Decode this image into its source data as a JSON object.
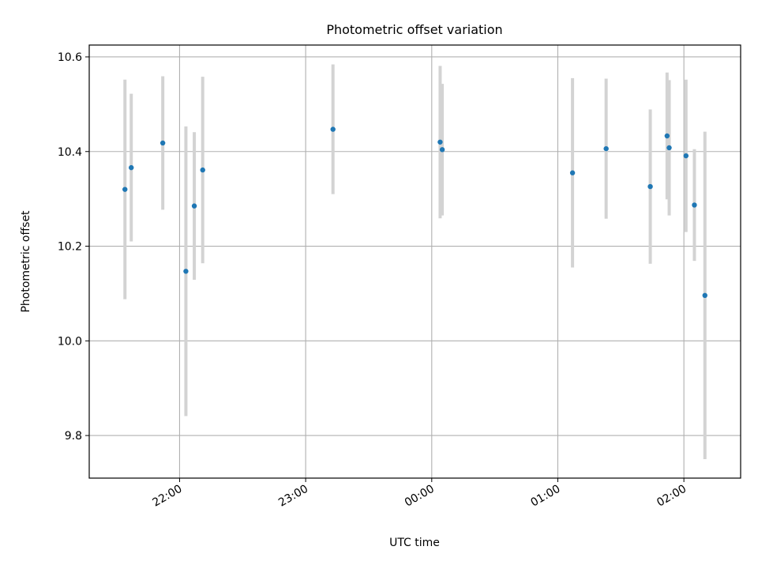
{
  "chart_data": {
    "type": "scatter",
    "title": "Photometric offset variation",
    "xlabel": "UTC time",
    "ylabel": "Photometric offset",
    "x_type": "time",
    "xlim": [
      "21:17",
      "02:27"
    ],
    "ylim": [
      9.71,
      10.625
    ],
    "grid": true,
    "x_ticks": [
      "22:00",
      "23:00",
      "00:00",
      "01:00",
      "02:00"
    ],
    "y_ticks": [
      "9.8",
      "10.0",
      "10.2",
      "10.4",
      "10.6"
    ],
    "y_tick_values": [
      9.8,
      10.0,
      10.2,
      10.4,
      10.6
    ],
    "point_color": "#1f77b4",
    "errorbar_color": "#d3d3d3",
    "series": [
      {
        "points": [
          {
            "x": "21:34",
            "y": 10.32,
            "yerr": 0.232
          },
          {
            "x": "21:37",
            "y": 10.366,
            "yerr": 0.156
          },
          {
            "x": "21:52",
            "y": 10.418,
            "yerr": 0.141
          },
          {
            "x": "22:03",
            "y": 10.147,
            "yerr": 0.306
          },
          {
            "x": "22:07",
            "y": 10.285,
            "yerr": 0.156
          },
          {
            "x": "22:11",
            "y": 10.361,
            "yerr": 0.197
          },
          {
            "x": "23:13",
            "y": 10.447,
            "yerr": 0.137
          },
          {
            "x": "00:04",
            "y": 10.42,
            "yerr": 0.161
          },
          {
            "x": "00:05",
            "y": 10.404,
            "yerr": 0.139
          },
          {
            "x": "01:07",
            "y": 10.355,
            "yerr": 0.2
          },
          {
            "x": "01:23",
            "y": 10.406,
            "yerr": 0.148
          },
          {
            "x": "01:44",
            "y": 10.326,
            "yerr": 0.163
          },
          {
            "x": "01:52",
            "y": 10.433,
            "yerr": 0.134
          },
          {
            "x": "01:53",
            "y": 10.408,
            "yerr": 0.143
          },
          {
            "x": "02:01",
            "y": 10.391,
            "yerr": 0.161
          },
          {
            "x": "02:05",
            "y": 10.287,
            "yerr": 0.118
          },
          {
            "x": "02:10",
            "y": 10.096,
            "yerr": 0.346
          }
        ]
      }
    ]
  }
}
